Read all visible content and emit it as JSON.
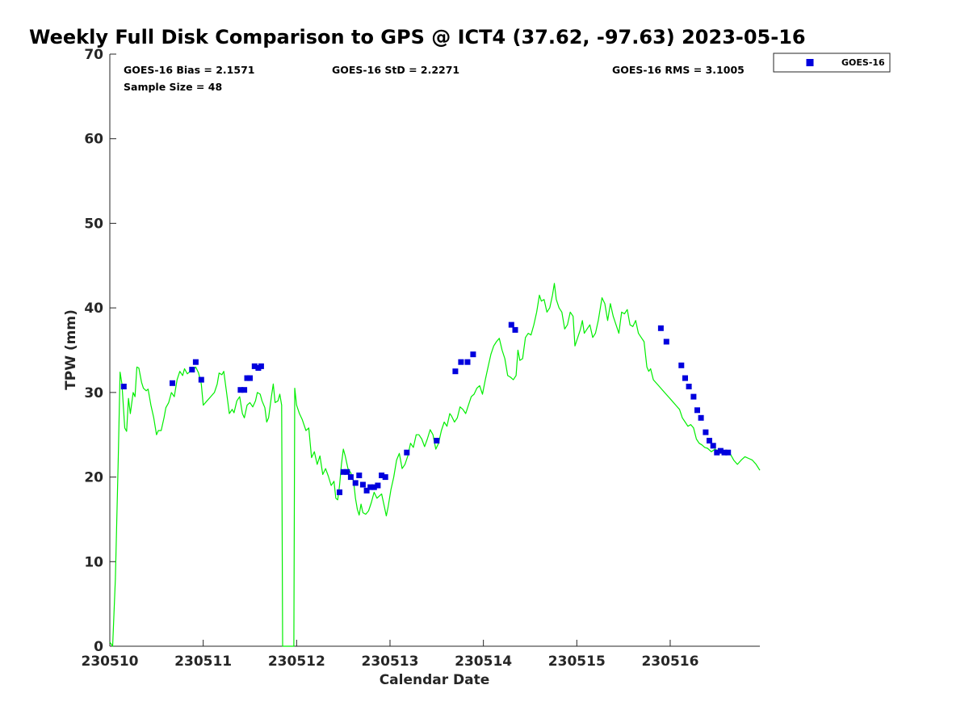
{
  "chart_data": {
    "type": "scatter",
    "title": "Weekly Full Disk Comparison to GPS @ ICT4 (37.62, -97.63) 2023-05-16",
    "xlabel": "Calendar Date",
    "ylabel": "TPW (mm)",
    "xlim": [
      0,
      6.96
    ],
    "ylim": [
      0,
      70
    ],
    "x_ticks": [
      0,
      1,
      2,
      3,
      4,
      5,
      6
    ],
    "x_tick_labels": [
      "230510",
      "230511",
      "230512",
      "230513",
      "230514",
      "230515",
      "230516"
    ],
    "y_ticks": [
      0,
      10,
      20,
      30,
      40,
      50,
      60,
      70
    ],
    "y_tick_labels": [
      "0",
      "10",
      "20",
      "30",
      "40",
      "50",
      "60",
      "70"
    ],
    "grid": false,
    "legend_position": "top-right",
    "stats": {
      "bias": "GOES-16 Bias = 2.1571",
      "std": "GOES-16 StD = 2.2271",
      "rms": "GOES-16 RMS = 3.1005",
      "sample_size": "Sample Size = 48"
    },
    "series": [
      {
        "name": "GOES-16",
        "kind": "points",
        "color": "#0000dd",
        "marker": "square",
        "points": [
          [
            0.15,
            30.7
          ],
          [
            0.67,
            31.1
          ],
          [
            0.88,
            32.7
          ],
          [
            0.92,
            33.6
          ],
          [
            0.98,
            31.5
          ],
          [
            1.4,
            30.3
          ],
          [
            1.44,
            30.3
          ],
          [
            1.47,
            31.7
          ],
          [
            1.5,
            31.7
          ],
          [
            1.55,
            33.1
          ],
          [
            1.59,
            32.9
          ],
          [
            1.62,
            33.1
          ],
          [
            2.46,
            18.2
          ],
          [
            2.5,
            20.6
          ],
          [
            2.54,
            20.6
          ],
          [
            2.58,
            20.0
          ],
          [
            2.63,
            19.3
          ],
          [
            2.67,
            20.2
          ],
          [
            2.71,
            19.1
          ],
          [
            2.75,
            18.4
          ],
          [
            2.79,
            18.8
          ],
          [
            2.83,
            18.8
          ],
          [
            2.87,
            19.0
          ],
          [
            2.91,
            20.2
          ],
          [
            2.95,
            20.0
          ],
          [
            3.18,
            22.9
          ],
          [
            3.5,
            24.3
          ],
          [
            3.7,
            32.5
          ],
          [
            3.76,
            33.6
          ],
          [
            3.83,
            33.6
          ],
          [
            3.89,
            34.5
          ],
          [
            4.3,
            38.0
          ],
          [
            4.34,
            37.4
          ],
          [
            5.9,
            37.6
          ],
          [
            5.96,
            36.0
          ],
          [
            6.12,
            33.2
          ],
          [
            6.16,
            31.7
          ],
          [
            6.2,
            30.7
          ],
          [
            6.25,
            29.5
          ],
          [
            6.29,
            27.9
          ],
          [
            6.33,
            27.0
          ],
          [
            6.38,
            25.3
          ],
          [
            6.42,
            24.3
          ],
          [
            6.46,
            23.7
          ],
          [
            6.5,
            22.9
          ],
          [
            6.54,
            23.1
          ],
          [
            6.58,
            22.9
          ],
          [
            6.62,
            22.9
          ]
        ]
      },
      {
        "kind": "line",
        "color": "#00ee00",
        "points": [
          [
            0.0,
            0.5
          ],
          [
            0.03,
            0.0
          ],
          [
            0.06,
            8.0
          ],
          [
            0.09,
            22.0
          ],
          [
            0.11,
            32.4
          ],
          [
            0.13,
            31.0
          ],
          [
            0.16,
            25.8
          ],
          [
            0.18,
            25.4
          ],
          [
            0.2,
            29.3
          ],
          [
            0.22,
            27.5
          ],
          [
            0.25,
            30.0
          ],
          [
            0.27,
            29.5
          ],
          [
            0.29,
            33.0
          ],
          [
            0.31,
            32.9
          ],
          [
            0.34,
            31.2
          ],
          [
            0.36,
            30.5
          ],
          [
            0.39,
            30.2
          ],
          [
            0.41,
            30.4
          ],
          [
            0.44,
            28.5
          ],
          [
            0.47,
            27.0
          ],
          [
            0.5,
            25.0
          ],
          [
            0.52,
            25.5
          ],
          [
            0.55,
            25.5
          ],
          [
            0.58,
            27.0
          ],
          [
            0.6,
            28.2
          ],
          [
            0.63,
            28.8
          ],
          [
            0.66,
            30.0
          ],
          [
            0.69,
            29.5
          ],
          [
            0.72,
            31.5
          ],
          [
            0.75,
            32.5
          ],
          [
            0.78,
            32.0
          ],
          [
            0.8,
            32.8
          ],
          [
            0.83,
            32.2
          ],
          [
            0.86,
            32.5
          ],
          [
            0.89,
            32.6
          ],
          [
            0.92,
            33.0
          ],
          [
            0.95,
            32.3
          ],
          [
            0.98,
            31.0
          ],
          [
            1.0,
            28.5
          ],
          [
            1.04,
            29.0
          ],
          [
            1.08,
            29.5
          ],
          [
            1.12,
            30.0
          ],
          [
            1.15,
            31.0
          ],
          [
            1.17,
            32.3
          ],
          [
            1.2,
            32.1
          ],
          [
            1.22,
            32.5
          ],
          [
            1.25,
            30.0
          ],
          [
            1.28,
            27.5
          ],
          [
            1.31,
            28.0
          ],
          [
            1.33,
            27.6
          ],
          [
            1.36,
            29.0
          ],
          [
            1.39,
            29.5
          ],
          [
            1.42,
            27.5
          ],
          [
            1.44,
            27.0
          ],
          [
            1.47,
            28.5
          ],
          [
            1.5,
            28.8
          ],
          [
            1.53,
            28.3
          ],
          [
            1.56,
            29.0
          ],
          [
            1.58,
            30.0
          ],
          [
            1.61,
            29.8
          ],
          [
            1.63,
            29.0
          ],
          [
            1.66,
            28.2
          ],
          [
            1.68,
            26.5
          ],
          [
            1.7,
            27.0
          ],
          [
            1.73,
            29.5
          ],
          [
            1.75,
            31.0
          ],
          [
            1.77,
            28.8
          ],
          [
            1.8,
            29.0
          ],
          [
            1.82,
            29.8
          ],
          [
            1.84,
            28.5
          ],
          [
            1.85,
            0.0
          ],
          [
            1.97,
            0.0
          ],
          [
            1.98,
            30.5
          ],
          [
            2.0,
            28.5
          ],
          [
            2.03,
            27.5
          ],
          [
            2.06,
            26.8
          ],
          [
            2.1,
            25.5
          ],
          [
            2.13,
            25.8
          ],
          [
            2.16,
            22.3
          ],
          [
            2.19,
            23.0
          ],
          [
            2.22,
            21.5
          ],
          [
            2.25,
            22.5
          ],
          [
            2.28,
            20.3
          ],
          [
            2.31,
            21.0
          ],
          [
            2.34,
            20.1
          ],
          [
            2.37,
            19.0
          ],
          [
            2.4,
            19.5
          ],
          [
            2.42,
            17.5
          ],
          [
            2.44,
            17.3
          ],
          [
            2.46,
            19.0
          ],
          [
            2.48,
            21.5
          ],
          [
            2.5,
            23.3
          ],
          [
            2.52,
            22.5
          ],
          [
            2.55,
            21.0
          ],
          [
            2.58,
            20.5
          ],
          [
            2.61,
            19.5
          ],
          [
            2.63,
            17.5
          ],
          [
            2.65,
            16.2
          ],
          [
            2.67,
            15.5
          ],
          [
            2.69,
            16.8
          ],
          [
            2.71,
            15.8
          ],
          [
            2.74,
            15.6
          ],
          [
            2.77,
            16.0
          ],
          [
            2.8,
            17.0
          ],
          [
            2.83,
            18.2
          ],
          [
            2.86,
            17.5
          ],
          [
            2.89,
            17.8
          ],
          [
            2.91,
            18.0
          ],
          [
            2.94,
            16.5
          ],
          [
            2.96,
            15.4
          ],
          [
            2.98,
            16.5
          ],
          [
            3.01,
            18.5
          ],
          [
            3.04,
            20.0
          ],
          [
            3.07,
            22.0
          ],
          [
            3.1,
            22.8
          ],
          [
            3.13,
            21.0
          ],
          [
            3.16,
            21.5
          ],
          [
            3.19,
            22.5
          ],
          [
            3.22,
            24.0
          ],
          [
            3.25,
            23.5
          ],
          [
            3.28,
            25.0
          ],
          [
            3.31,
            25.0
          ],
          [
            3.34,
            24.5
          ],
          [
            3.37,
            23.6
          ],
          [
            3.4,
            24.5
          ],
          [
            3.43,
            25.6
          ],
          [
            3.46,
            25.0
          ],
          [
            3.49,
            23.3
          ],
          [
            3.52,
            24.0
          ],
          [
            3.55,
            25.5
          ],
          [
            3.58,
            26.5
          ],
          [
            3.61,
            26.0
          ],
          [
            3.64,
            27.5
          ],
          [
            3.66,
            27.2
          ],
          [
            3.69,
            26.5
          ],
          [
            3.72,
            27.0
          ],
          [
            3.75,
            28.3
          ],
          [
            3.78,
            28.0
          ],
          [
            3.81,
            27.5
          ],
          [
            3.84,
            28.5
          ],
          [
            3.87,
            29.5
          ],
          [
            3.9,
            29.8
          ],
          [
            3.93,
            30.5
          ],
          [
            3.96,
            30.8
          ],
          [
            3.99,
            29.8
          ],
          [
            4.02,
            31.5
          ],
          [
            4.05,
            33.0
          ],
          [
            4.08,
            34.5
          ],
          [
            4.11,
            35.5
          ],
          [
            4.14,
            36.0
          ],
          [
            4.17,
            36.4
          ],
          [
            4.2,
            35.0
          ],
          [
            4.23,
            34.0
          ],
          [
            4.26,
            32.0
          ],
          [
            4.29,
            31.8
          ],
          [
            4.32,
            31.5
          ],
          [
            4.35,
            32.0
          ],
          [
            4.37,
            35.0
          ],
          [
            4.39,
            33.8
          ],
          [
            4.42,
            34.0
          ],
          [
            4.45,
            36.5
          ],
          [
            4.48,
            37.0
          ],
          [
            4.51,
            36.8
          ],
          [
            4.54,
            38.0
          ],
          [
            4.57,
            39.5
          ],
          [
            4.6,
            41.5
          ],
          [
            4.62,
            40.8
          ],
          [
            4.65,
            41.0
          ],
          [
            4.68,
            39.5
          ],
          [
            4.71,
            40.0
          ],
          [
            4.74,
            41.5
          ],
          [
            4.76,
            42.9
          ],
          [
            4.78,
            41.0
          ],
          [
            4.81,
            40.0
          ],
          [
            4.84,
            39.5
          ],
          [
            4.87,
            37.5
          ],
          [
            4.9,
            38.0
          ],
          [
            4.93,
            39.5
          ],
          [
            4.96,
            39.0
          ],
          [
            4.98,
            35.5
          ],
          [
            5.01,
            36.5
          ],
          [
            5.04,
            37.5
          ],
          [
            5.06,
            38.5
          ],
          [
            5.08,
            37.0
          ],
          [
            5.11,
            37.5
          ],
          [
            5.14,
            38.0
          ],
          [
            5.17,
            36.5
          ],
          [
            5.2,
            37.0
          ],
          [
            5.23,
            38.5
          ],
          [
            5.27,
            41.2
          ],
          [
            5.3,
            40.5
          ],
          [
            5.33,
            38.5
          ],
          [
            5.36,
            40.5
          ],
          [
            5.39,
            39.0
          ],
          [
            5.42,
            38.0
          ],
          [
            5.45,
            37.0
          ],
          [
            5.48,
            39.5
          ],
          [
            5.51,
            39.3
          ],
          [
            5.54,
            39.8
          ],
          [
            5.57,
            38.0
          ],
          [
            5.6,
            37.8
          ],
          [
            5.63,
            38.5
          ],
          [
            5.66,
            37.0
          ],
          [
            5.69,
            36.5
          ],
          [
            5.72,
            36.0
          ],
          [
            5.75,
            33.0
          ],
          [
            5.77,
            32.5
          ],
          [
            5.79,
            32.8
          ],
          [
            5.82,
            31.5
          ],
          [
            5.86,
            31.0
          ],
          [
            5.9,
            30.5
          ],
          [
            5.94,
            30.0
          ],
          [
            5.98,
            29.5
          ],
          [
            6.02,
            29.0
          ],
          [
            6.06,
            28.5
          ],
          [
            6.1,
            28.0
          ],
          [
            6.13,
            27.0
          ],
          [
            6.16,
            26.5
          ],
          [
            6.19,
            26.0
          ],
          [
            6.22,
            26.2
          ],
          [
            6.25,
            25.8
          ],
          [
            6.28,
            24.5
          ],
          [
            6.31,
            24.0
          ],
          [
            6.34,
            23.8
          ],
          [
            6.37,
            23.5
          ],
          [
            6.4,
            23.4
          ],
          [
            6.44,
            23.0
          ],
          [
            6.48,
            23.3
          ],
          [
            6.52,
            23.0
          ],
          [
            6.56,
            23.2
          ],
          [
            6.6,
            23.0
          ],
          [
            6.64,
            22.8
          ],
          [
            6.68,
            22.0
          ],
          [
            6.72,
            21.5
          ],
          [
            6.76,
            22.0
          ],
          [
            6.8,
            22.4
          ],
          [
            6.84,
            22.2
          ],
          [
            6.88,
            22.0
          ],
          [
            6.92,
            21.5
          ],
          [
            6.96,
            20.8
          ]
        ]
      }
    ]
  }
}
